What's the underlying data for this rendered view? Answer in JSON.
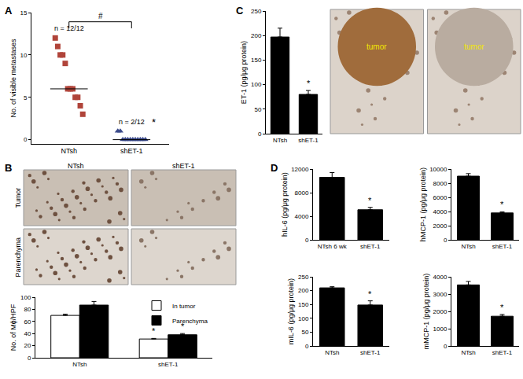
{
  "chart_data": [
    {
      "type": "strip",
      "title": "A",
      "y_label": "No. of visible metastases",
      "categories": [
        "NTsh",
        "shET-1"
      ],
      "groups": [
        {
          "values": [
            12,
            11,
            10,
            10,
            9,
            6,
            6,
            6,
            5,
            5,
            4,
            3
          ],
          "median": 6,
          "color": "#b0443a",
          "marker": "square",
          "label": "n = 12/12"
        },
        {
          "values": [
            1,
            1,
            0,
            0,
            0,
            0,
            0,
            0,
            0,
            0,
            0,
            0
          ],
          "median": 0,
          "color": "#3b4a8a",
          "marker": "triangle-up",
          "label": "n = 2/12",
          "significance": "*"
        }
      ],
      "comparison": "#",
      "ylim": [
        -0.5,
        15
      ],
      "yticks": [
        0,
        5,
        10,
        15
      ]
    },
    {
      "type": "image",
      "title": "B",
      "columns": [
        "NTsh",
        "shET-1"
      ],
      "rows": [
        "Tumor",
        "Parenchyma"
      ]
    },
    {
      "type": "bar",
      "y_label": "No. of Mɸ/HPF",
      "categories": [
        "NTsh",
        "shET-1"
      ],
      "series": [
        {
          "name": "In tumor",
          "color": "#ffffff",
          "values": [
            70,
            31
          ],
          "errors": [
            2,
            1
          ],
          "significance": [
            null,
            "*"
          ]
        },
        {
          "name": "Parenchyma",
          "color": "#000000",
          "values": [
            87,
            38
          ],
          "errors": [
            6,
            2
          ],
          "significance": [
            null,
            "*"
          ]
        }
      ],
      "ylim": [
        0,
        100
      ],
      "yticks": [
        0,
        20,
        40,
        60,
        80,
        100
      ],
      "legend": "upper right"
    },
    {
      "type": "bar",
      "title": "C",
      "y_label": "ET-1 (pg/μg protein)",
      "categories": [
        "NTsh",
        "shET-1"
      ],
      "values": [
        197,
        80
      ],
      "errors": [
        18,
        8
      ],
      "significance": [
        null,
        "*"
      ],
      "color": "#000000",
      "ylim": [
        0,
        250
      ],
      "yticks": [
        0,
        50,
        100,
        150,
        200,
        250
      ]
    },
    {
      "type": "image",
      "labels": [
        "tumor",
        "tumor"
      ]
    },
    {
      "type": "bar",
      "title": "D",
      "y_label": "hIL-6 (pg/μg protein)",
      "categories": [
        "NTsh 6 wk",
        "shET-1"
      ],
      "values": [
        10600,
        5100
      ],
      "errors": [
        800,
        400
      ],
      "significance": [
        null,
        "*"
      ],
      "color": "#000000",
      "ylim": [
        0,
        12000
      ],
      "yticks": [
        0,
        4000,
        8000,
        12000
      ]
    },
    {
      "type": "bar",
      "y_label": "hMCP-1 (pg/μg protein)",
      "categories": [
        "NTsh",
        "shET-1"
      ],
      "values": [
        9000,
        3800
      ],
      "errors": [
        350,
        150
      ],
      "significance": [
        null,
        "*"
      ],
      "color": "#000000",
      "ylim": [
        0,
        10000
      ],
      "yticks": [
        0,
        2000,
        4000,
        6000,
        8000,
        10000
      ]
    },
    {
      "type": "bar",
      "y_label": "mIL-6 (pg/μg protein)",
      "categories": [
        "NTsh",
        "shET-1"
      ],
      "values": [
        210,
        148
      ],
      "errors": [
        4,
        15
      ],
      "significance": [
        null,
        "*"
      ],
      "color": "#000000",
      "ylim": [
        0,
        250
      ],
      "yticks": [
        0,
        50,
        100,
        150,
        200,
        250
      ]
    },
    {
      "type": "bar",
      "y_label": "mMCP-1 (pg/μg protein)",
      "categories": [
        "NTsh",
        "shET-1"
      ],
      "values": [
        3530,
        1720
      ],
      "errors": [
        200,
        100
      ],
      "significance": [
        null,
        "*"
      ],
      "color": "#000000",
      "ylim": [
        0,
        4000
      ],
      "yticks": [
        0,
        1000,
        2000,
        3000,
        4000
      ]
    }
  ]
}
